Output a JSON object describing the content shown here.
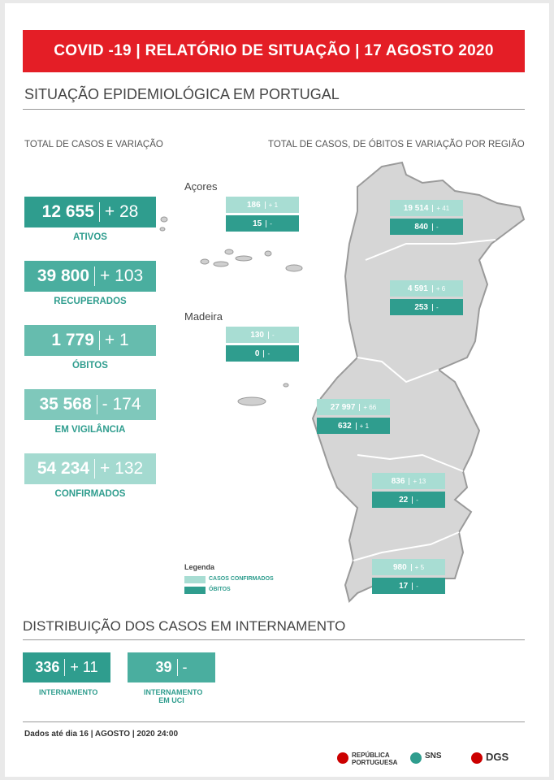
{
  "header": {
    "title": "COVID -19 | RELATÓRIO DE SITUAÇÃO | 17 AGOSTO 2020"
  },
  "section1": {
    "title": "SITUAÇÃO EPIDEMIOLÓGICA EM PORTUGAL",
    "left_subtitle": "TOTAL DE CASOS E VARIAÇÃO",
    "right_subtitle": "TOTAL DE CASOS, DE ÓBITOS  E VARIAÇÃO POR REGIÃO"
  },
  "totals": [
    {
      "value": "12 655",
      "change": "+ 28",
      "label": "ATIVOS"
    },
    {
      "value": "39 800",
      "change": "+ 103",
      "label": "RECUPERADOS"
    },
    {
      "value": "1 779",
      "change": "+ 1",
      "label": "ÓBITOS"
    },
    {
      "value": "35 568",
      "change": "- 174",
      "label": "EM VIGILÂNCIA"
    },
    {
      "value": "54 234",
      "change": "+ 132",
      "label": "CONFIRMADOS"
    }
  ],
  "regions": [
    {
      "name": "Açores",
      "confirmed": "186",
      "confirmed_change": "+ 1",
      "deaths": "15",
      "deaths_change": "-"
    },
    {
      "confirmed": "19 514",
      "confirmed_change": "+ 41",
      "deaths": "840",
      "deaths_change": "-"
    },
    {
      "confirmed": "4 591",
      "confirmed_change": "+ 6",
      "deaths": "253",
      "deaths_change": "-"
    },
    {
      "name": "Madeira",
      "confirmed": "130",
      "confirmed_change": "-",
      "deaths": "0",
      "deaths_change": "-"
    },
    {
      "confirmed": "27 997",
      "confirmed_change": "+ 66",
      "deaths": "632",
      "deaths_change": "+ 1"
    },
    {
      "confirmed": "836",
      "confirmed_change": "+ 13",
      "deaths": "22",
      "deaths_change": "-"
    },
    {
      "confirmed": "980",
      "confirmed_change": "+ 5",
      "deaths": "17",
      "deaths_change": "-"
    }
  ],
  "legend": {
    "title": "Legenda",
    "confirmed": "CASOS CONFIRMADOS",
    "deaths": "ÓBITOS"
  },
  "section2": {
    "title": "DISTRIBUIÇÃO DOS CASOS EM INTERNAMENTO",
    "items": [
      {
        "value": "336",
        "change": "+ 11",
        "label": "INTERNAMENTO"
      },
      {
        "value": "39",
        "change": "-",
        "label": "INTERNAMENTO EM UCI"
      }
    ]
  },
  "footer": {
    "note": "Dados até dia 16 | AGOSTO | 2020 24:00",
    "logos": [
      "REPÚBLICA PORTUGUESA",
      "SNS",
      "DGS"
    ]
  }
}
